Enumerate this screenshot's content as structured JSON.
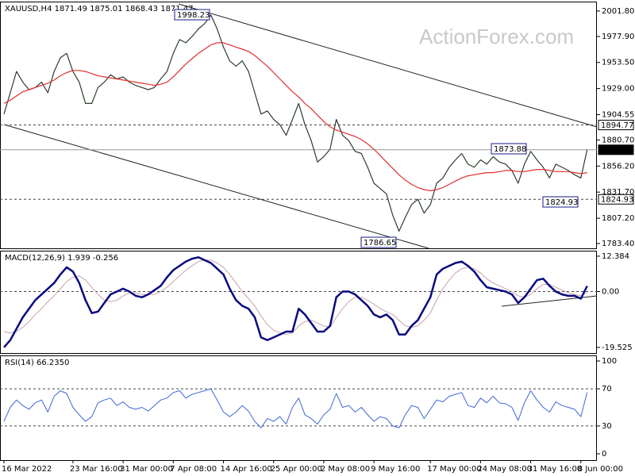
{
  "chart_data": [
    {
      "type": "line",
      "title": "XAUUSD,H4 1871.49 1875.01 1868.43 1871.47",
      "watermark": "ActionForex.com",
      "ylim": [
        1778.9,
        2010.7
      ],
      "yticks": [
        {
          "value": 2001.8,
          "label": "2001.80"
        },
        {
          "value": 1977.9,
          "label": "1977.90"
        },
        {
          "value": 1953.5,
          "label": "1953.50"
        },
        {
          "value": 1929.0,
          "label": "1929.00"
        },
        1904.55,
        {
          "value": 1880.7,
          "label": "1880.70"
        },
        {
          "value": 1856.2,
          "label": "1856.20"
        },
        {
          "value": 1831.7,
          "label": "1831.70"
        },
        {
          "value": 1807.2,
          "label": "1807.20"
        },
        {
          "value": 1783.4,
          "label": "1783.40"
        }
      ],
      "levels": [
        {
          "value": 1894.77,
          "style": "dashed"
        },
        {
          "value": 1871.47,
          "style": "current"
        },
        {
          "value": 1824.93,
          "style": "dashed"
        }
      ],
      "annotations": [
        "1998.23",
        "1873.88",
        "1824.93",
        "1786.65"
      ],
      "series": [
        {
          "name": "XAUUSD",
          "color": "#2c3e2c",
          "values": [
            1905,
            1925,
            1945,
            1935,
            1928,
            1930,
            1935,
            1925,
            1945,
            1958,
            1962,
            1945,
            1935,
            1915,
            1915,
            1930,
            1935,
            1942,
            1938,
            1940,
            1935,
            1932,
            1930,
            1928,
            1930,
            1938,
            1945,
            1962,
            1975,
            1972,
            1978,
            1985,
            1990,
            1998,
            1985,
            1968,
            1955,
            1950,
            1955,
            1945,
            1925,
            1905,
            1908,
            1900,
            1895,
            1885,
            1900,
            1915,
            1895,
            1880,
            1860,
            1865,
            1872,
            1900,
            1885,
            1880,
            1870,
            1868,
            1855,
            1840,
            1835,
            1830,
            1810,
            1795,
            1808,
            1820,
            1825,
            1812,
            1820,
            1840,
            1845,
            1855,
            1862,
            1868,
            1858,
            1855,
            1862,
            1858,
            1865,
            1860,
            1858,
            1852,
            1840,
            1858,
            1870,
            1862,
            1855,
            1845,
            1858,
            1855,
            1852,
            1848,
            1845,
            1871.47
          ]
        },
        {
          "name": "MA",
          "color": "#e03030",
          "values": [
            1915,
            1918,
            1922,
            1926,
            1928,
            1930,
            1932,
            1934,
            1937,
            1941,
            1944,
            1946,
            1946,
            1945,
            1943,
            1941,
            1940,
            1939,
            1938,
            1937,
            1936,
            1935,
            1934,
            1933,
            1932,
            1933,
            1935,
            1940,
            1946,
            1952,
            1957,
            1962,
            1966,
            1970,
            1972,
            1972,
            1970,
            1968,
            1966,
            1964,
            1960,
            1955,
            1950,
            1944,
            1938,
            1932,
            1926,
            1921,
            1915,
            1910,
            1904,
            1898,
            1893,
            1890,
            1888,
            1886,
            1884,
            1881,
            1877,
            1872,
            1866,
            1860,
            1854,
            1848,
            1843,
            1839,
            1836,
            1834,
            1833,
            1834,
            1836,
            1839,
            1842,
            1845,
            1847,
            1848,
            1849,
            1850,
            1850,
            1851,
            1852,
            1852,
            1851,
            1851,
            1852,
            1853,
            1853,
            1852,
            1851,
            1851,
            1851,
            1850,
            1849,
            1850
          ]
        }
      ]
    },
    {
      "type": "line",
      "title": "MACD(12,26,9) 1.939 -0.256",
      "ylim": [
        -21.5,
        14.3
      ],
      "yticks": [
        12.384,
        {
          "value": 0,
          "label": "0.00"
        },
        -19.525
      ],
      "levels": [
        {
          "value": 0,
          "style": "dashed"
        }
      ],
      "series": [
        {
          "name": "Signal",
          "color": "#c9a3ad",
          "width": 1,
          "values": [
            -14,
            -14.5,
            -14,
            -12.5,
            -10.5,
            -8,
            -6,
            -3.5,
            -1.5,
            1,
            3.5,
            5,
            5.5,
            4,
            1.5,
            -1,
            -3,
            -3.5,
            -3,
            -1.5,
            -0.5,
            -0.5,
            -1,
            -1,
            -1,
            0,
            1.5,
            3.5,
            5.5,
            7.5,
            9,
            10.5,
            11,
            11,
            10,
            8.5,
            6,
            3,
            0,
            -2.5,
            -5,
            -8.5,
            -11.5,
            -13.5,
            -14.5,
            -15,
            -14.5,
            -12,
            -10.5,
            -10,
            -11,
            -12,
            -12.5,
            -9,
            -6,
            -3.5,
            -2,
            -2,
            -3,
            -4.5,
            -6,
            -7,
            -8,
            -10,
            -12,
            -12.5,
            -12,
            -10,
            -7.5,
            -3,
            1,
            4,
            6.5,
            8,
            8.5,
            8,
            6.5,
            4.5,
            3,
            2,
            1,
            0,
            -1.5,
            -2,
            -1,
            1,
            2.5,
            2.5,
            1.5,
            0.5,
            -0.5,
            -1,
            -1.5,
            -0.256
          ]
        },
        {
          "name": "MACD",
          "color": "#0a0a80",
          "width": 2.5,
          "values": [
            -19.5,
            -17,
            -13,
            -9,
            -6,
            -3,
            -1,
            1,
            3,
            6,
            8.5,
            7,
            3,
            -3,
            -7.5,
            -7,
            -4,
            -1,
            0,
            1,
            0,
            -1.5,
            -2,
            -1,
            0.5,
            2,
            5,
            7.5,
            9,
            10.5,
            11.5,
            12,
            11,
            10,
            8,
            6,
            1,
            -3,
            -5,
            -6,
            -9,
            -16,
            -17,
            -16,
            -15,
            -14,
            -14,
            -6,
            -8,
            -11,
            -14,
            -14,
            -12,
            -2,
            0,
            0,
            -1,
            -3,
            -5,
            -8,
            -9,
            -8,
            -10,
            -15,
            -15,
            -12,
            -10,
            -6,
            -2,
            6,
            8,
            9,
            10,
            10.5,
            9,
            7,
            4,
            1.5,
            1,
            0.5,
            0,
            -1,
            -4,
            -2,
            1,
            4,
            4.5,
            2,
            0,
            -1,
            -1.5,
            -1.5,
            -2.5,
            1.939
          ]
        }
      ]
    },
    {
      "type": "line",
      "title": "RSI(14) 66.2350",
      "ylim": [
        -6.8,
        106
      ],
      "yticks": [
        100,
        70,
        30,
        0
      ],
      "levels": [
        {
          "value": 70,
          "style": "dashed"
        },
        {
          "value": 30,
          "style": "dashed"
        }
      ],
      "categories": [
        "16 Mar 2022",
        null,
        null,
        null,
        null,
        null,
        null,
        null,
        null,
        null,
        null,
        "23 Mar 16:00",
        null,
        null,
        null,
        null,
        null,
        null,
        null,
        "31 Mar 00:00",
        null,
        null,
        null,
        null,
        null,
        null,
        null,
        "7 Apr 08:00",
        null,
        null,
        null,
        null,
        null,
        null,
        null,
        "14 Apr 16:00",
        null,
        null,
        null,
        null,
        null,
        null,
        null,
        "25 Apr 00:00",
        null,
        null,
        null,
        null,
        null,
        null,
        null,
        "2 May 08:00",
        null,
        null,
        null,
        null,
        null,
        null,
        null,
        "9 May 16:00",
        null,
        null,
        null,
        null,
        null,
        null,
        null,
        null,
        "17 May 00:00",
        null,
        null,
        null,
        null,
        null,
        null,
        null,
        "24 May 08:00",
        null,
        null,
        null,
        null,
        null,
        null,
        null,
        "31 May 16:00",
        null,
        null,
        null,
        null,
        null,
        null,
        null,
        "8 Jun 00:00",
        null
      ],
      "series": [
        {
          "name": "RSI",
          "color": "#3f66d6",
          "width": 1,
          "values": [
            35,
            50,
            58,
            52,
            48,
            55,
            58,
            45,
            62,
            68,
            65,
            50,
            42,
            35,
            40,
            55,
            58,
            60,
            52,
            56,
            50,
            48,
            50,
            46,
            52,
            58,
            60,
            66,
            68,
            60,
            64,
            66,
            68,
            70,
            58,
            45,
            40,
            45,
            52,
            46,
            35,
            28,
            38,
            35,
            40,
            32,
            50,
            60,
            42,
            38,
            32,
            42,
            48,
            65,
            50,
            52,
            45,
            50,
            42,
            35,
            40,
            38,
            30,
            28,
            42,
            52,
            50,
            38,
            48,
            58,
            56,
            62,
            64,
            66,
            52,
            50,
            60,
            55,
            62,
            55,
            54,
            50,
            36,
            55,
            68,
            58,
            50,
            45,
            56,
            52,
            50,
            48,
            40,
            66.235
          ]
        }
      ]
    }
  ]
}
